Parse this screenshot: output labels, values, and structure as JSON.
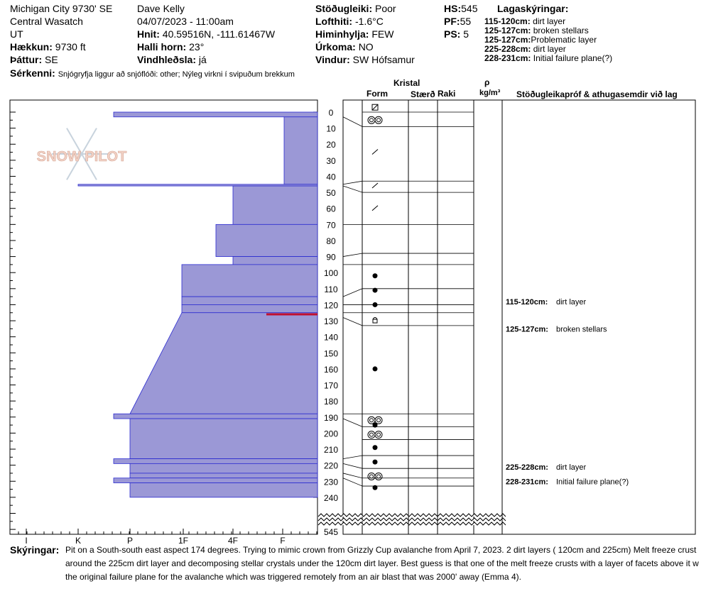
{
  "header": {
    "location": "Michigan City 9730' SE",
    "region": "Central Wasatch",
    "state": "UT",
    "elevation_label": "Hækkun:",
    "elevation": "9730 ft",
    "aspect_label": "Þáttur:",
    "aspect": "SE",
    "features_label": "Sérkenni:",
    "features": "Snjógryfja liggur að snjóflóði: other; Nýleg virkni í svipuðum brekkum",
    "observer": "Dave Kelly",
    "datetime": "04/07/2023 - 11:00am",
    "coords_label": "Hnit:",
    "coords": "40.59516N, -111.61467W",
    "slope_label": "Halli horn:",
    "slope": "23°",
    "wind_loading_label": "Vindhleðsla:",
    "wind_loading": "já",
    "stability_label": "Stöðugleiki:",
    "stability": "Poor",
    "air_temp_label": "Lofthiti:",
    "air_temp": "-1.6°C",
    "sky_label": "Himinhylja:",
    "sky": "FEW",
    "precip_label": "Úrkoma:",
    "precip": "NO",
    "wind_label": "Vindur:",
    "wind": "SW Hófsamur",
    "hs_label": "HS:",
    "hs": "545",
    "pf_label": "PF:",
    "pf": "55",
    "ps_label": "PS:",
    "ps": "5",
    "layers_title": "Lagaskýringar:",
    "layer_notes": [
      {
        "range": "115-120cm:",
        "text": "dirt layer"
      },
      {
        "range": "125-127cm:",
        "text": "broken stellars"
      },
      {
        "range": "125-127cm:",
        "text": "Problematic layer"
      },
      {
        "range": "225-228cm:",
        "text": "dirt layer"
      },
      {
        "range": "228-231cm:",
        "text": "Initial failure plane(?)"
      }
    ]
  },
  "columns": {
    "crystal": "Kristal",
    "form": "Form",
    "size": "Stærð",
    "moisture": "Raki",
    "rho": "ρ",
    "density_unit": "kg/m³",
    "tests": "Stöðugleikapróf & athugasemdir við lag"
  },
  "watermark": "SNOW PILOT",
  "comments_label": "Skýringar:",
  "comments": [
    "Pit on a South-south east aspect 174 degrees. Trying to mimic crown from Grizzly Cup avalanche from April 7, 2023. 2 dirt layers ( 120cm and 225cm) Melt freeze crust",
    "around the 225cm dirt layer and decomposing stellar crystals under the 120cm dirt layer. Best guess is that one of the melt freeze crusts with a layer of facets above it w",
    "the original failure plane for the avalanche which was triggered remotely from an air blast that was 2000' away (Emma 4)."
  ],
  "annotations": [
    {
      "depth": 118,
      "range": "115-120cm:",
      "text": "dirt layer"
    },
    {
      "depth": 135,
      "range": "125-127cm:",
      "text": "broken stellars"
    },
    {
      "depth": 221,
      "range": "225-228cm:",
      "text": "dirt layer"
    },
    {
      "depth": 230,
      "range": "228-231cm:",
      "text": "Initial failure plane(?)"
    }
  ],
  "colors": {
    "layer_fill": "#9b98d6",
    "layer_stroke": "#2b2bd0",
    "critical_line": "#c01030"
  },
  "chart_data": {
    "type": "snow-profile",
    "x_axis_ticks": [
      "I",
      "K",
      "P",
      "1F",
      "4F",
      "F"
    ],
    "depth_ticks": [
      0,
      10,
      20,
      30,
      40,
      50,
      60,
      70,
      80,
      90,
      100,
      110,
      120,
      130,
      140,
      150,
      160,
      170,
      180,
      190,
      200,
      210,
      220,
      230,
      240
    ],
    "total_depth_label": "545",
    "ylim": [
      0,
      545
    ],
    "layers": [
      {
        "top": 0,
        "bottom": 3,
        "hardness": "P-"
      },
      {
        "top": 3,
        "bottom": 45,
        "hardness": "F+"
      },
      {
        "top": 45,
        "bottom": 46,
        "hardness": "K"
      },
      {
        "top": 46,
        "bottom": 70,
        "hardness": "4F"
      },
      {
        "top": 70,
        "bottom": 90,
        "hardness": "4F+"
      },
      {
        "top": 90,
        "bottom": 95,
        "hardness": "4F"
      },
      {
        "top": 95,
        "bottom": 115,
        "hardness": "1F"
      },
      {
        "top": 115,
        "bottom": 120,
        "hardness": "1F"
      },
      {
        "top": 120,
        "bottom": 125,
        "hardness": "1F"
      },
      {
        "top": 125,
        "bottom": 188,
        "hardness": "1F to P"
      },
      {
        "top": 188,
        "bottom": 191,
        "hardness": "P-"
      },
      {
        "top": 191,
        "bottom": 216,
        "hardness": "P"
      },
      {
        "top": 216,
        "bottom": 219,
        "hardness": "P-"
      },
      {
        "top": 219,
        "bottom": 225,
        "hardness": "P"
      },
      {
        "top": 225,
        "bottom": 228,
        "hardness": "P"
      },
      {
        "top": 228,
        "bottom": 231,
        "hardness": "P-"
      },
      {
        "top": 231,
        "bottom": 240,
        "hardness": "P"
      }
    ],
    "critical_layer_depth": 126,
    "grain_forms": [
      {
        "depth": -3,
        "form": "melt-freeze-crust"
      },
      {
        "depth": 5,
        "form": "rounded-polycrystals"
      },
      {
        "depth": 25,
        "form": "decomposing-fragments"
      },
      {
        "depth": 46,
        "form": "decomposing-fragments"
      },
      {
        "depth": 60,
        "form": "decomposing-fragments"
      },
      {
        "depth": 102,
        "form": "rounded-grains"
      },
      {
        "depth": 111,
        "form": "rounded-grains"
      },
      {
        "depth": 120,
        "form": "rounded-grains"
      },
      {
        "depth": 130,
        "form": "faceted-crystals"
      },
      {
        "depth": 160,
        "form": "rounded-grains"
      },
      {
        "depth": 192,
        "form": "rounded-polycrystals"
      },
      {
        "depth": 195,
        "form": "rounded-grains"
      },
      {
        "depth": 201,
        "form": "rounded-polycrystals"
      },
      {
        "depth": 209,
        "form": "rounded-grains"
      },
      {
        "depth": 218,
        "form": "rounded-grains"
      },
      {
        "depth": 227,
        "form": "rounded-polycrystals"
      },
      {
        "depth": 234,
        "form": "rounded-grains"
      }
    ]
  }
}
